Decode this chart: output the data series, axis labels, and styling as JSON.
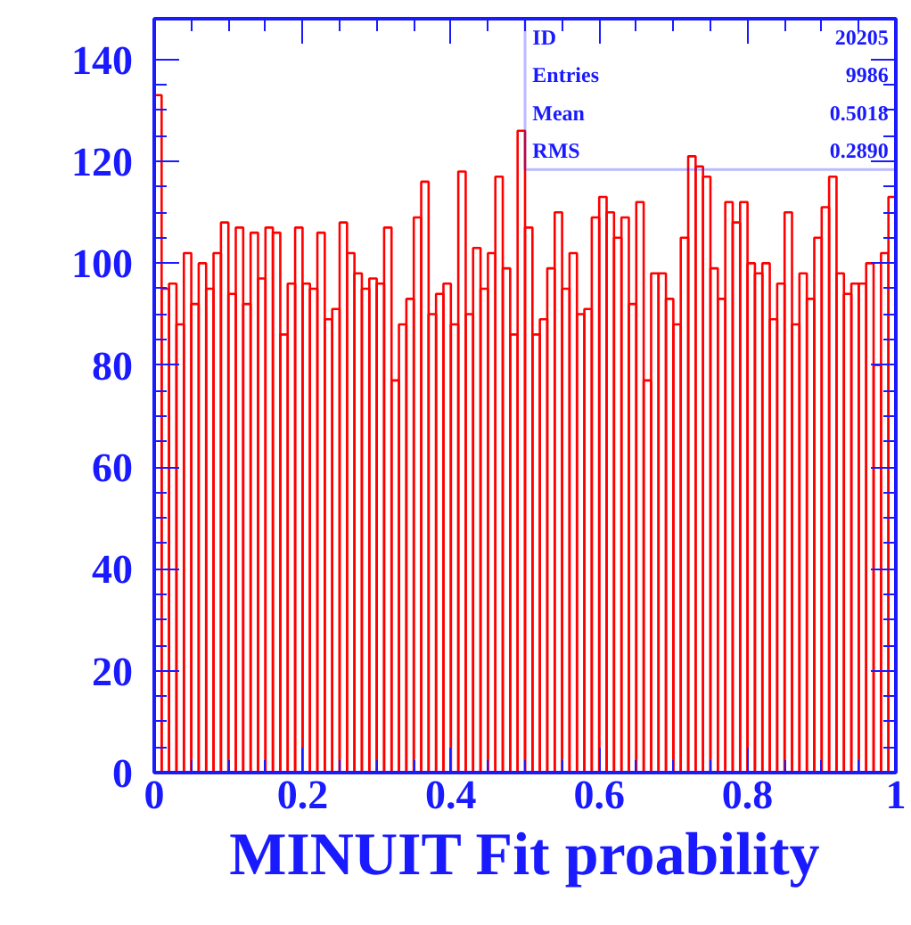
{
  "chart_data": {
    "type": "histogram",
    "xlabel": "MINUIT Fit proability",
    "bins": [
      0,
      0.01,
      0.02,
      0.03,
      0.04,
      0.05,
      0.06,
      0.07,
      0.08,
      0.09,
      0.1,
      0.11,
      0.12,
      0.13,
      0.14,
      0.15,
      0.16,
      0.17,
      0.18,
      0.19,
      0.2,
      0.21,
      0.22,
      0.23,
      0.24,
      0.25,
      0.26,
      0.27,
      0.28,
      0.29,
      0.3,
      0.31,
      0.32,
      0.33,
      0.34,
      0.35,
      0.36,
      0.37,
      0.38,
      0.39,
      0.4,
      0.41,
      0.42,
      0.43,
      0.44,
      0.45,
      0.46,
      0.47,
      0.48,
      0.49,
      0.5,
      0.51,
      0.52,
      0.53,
      0.54,
      0.55,
      0.56,
      0.57,
      0.58,
      0.59,
      0.6,
      0.61,
      0.62,
      0.63,
      0.64,
      0.65,
      0.66,
      0.67,
      0.68,
      0.69,
      0.7,
      0.71,
      0.72,
      0.73,
      0.74,
      0.75,
      0.76,
      0.77,
      0.78,
      0.79,
      0.8,
      0.81,
      0.82,
      0.83,
      0.84,
      0.85,
      0.86,
      0.87,
      0.88,
      0.89,
      0.9,
      0.91,
      0.92,
      0.93,
      0.94,
      0.95,
      0.96,
      0.97,
      0.98,
      0.99,
      1
    ],
    "values": [
      133,
      95,
      96,
      88,
      102,
      92,
      100,
      95,
      102,
      108,
      94,
      107,
      92,
      106,
      97,
      107,
      106,
      86,
      96,
      107,
      96,
      95,
      106,
      89,
      91,
      108,
      102,
      98,
      95,
      97,
      96,
      107,
      77,
      88,
      93,
      109,
      116,
      90,
      94,
      96,
      88,
      118,
      90,
      103,
      95,
      102,
      117,
      99,
      86,
      126,
      107,
      86,
      89,
      99,
      110,
      95,
      102,
      90,
      91,
      109,
      113,
      110,
      105,
      109,
      92,
      112,
      77,
      98,
      98,
      93,
      88,
      105,
      121,
      119,
      117,
      99,
      93,
      112,
      108,
      112,
      100,
      98,
      100,
      89,
      96,
      110,
      88,
      98,
      93,
      105,
      111,
      117,
      98,
      94,
      96,
      96,
      100,
      80,
      102,
      113
    ],
    "color": "#ff0000",
    "xlim": [
      0,
      1
    ],
    "ylim": [
      0,
      148
    ],
    "xticks": [
      0,
      {
        "value": 0.2,
        "label": "0.2"
      },
      {
        "value": 0.4,
        "label": "0.4"
      },
      {
        "value": 0.6,
        "label": "0.6"
      },
      {
        "value": 0.8,
        "label": "0.8"
      },
      1
    ],
    "yticks": [
      0,
      20,
      40,
      60,
      80,
      100,
      120,
      140
    ],
    "annotations": [
      "ID",
      "20205",
      "Entries",
      "9986",
      "Mean",
      "0.5018",
      "RMS",
      "0.2890"
    ],
    "grid": false
  }
}
